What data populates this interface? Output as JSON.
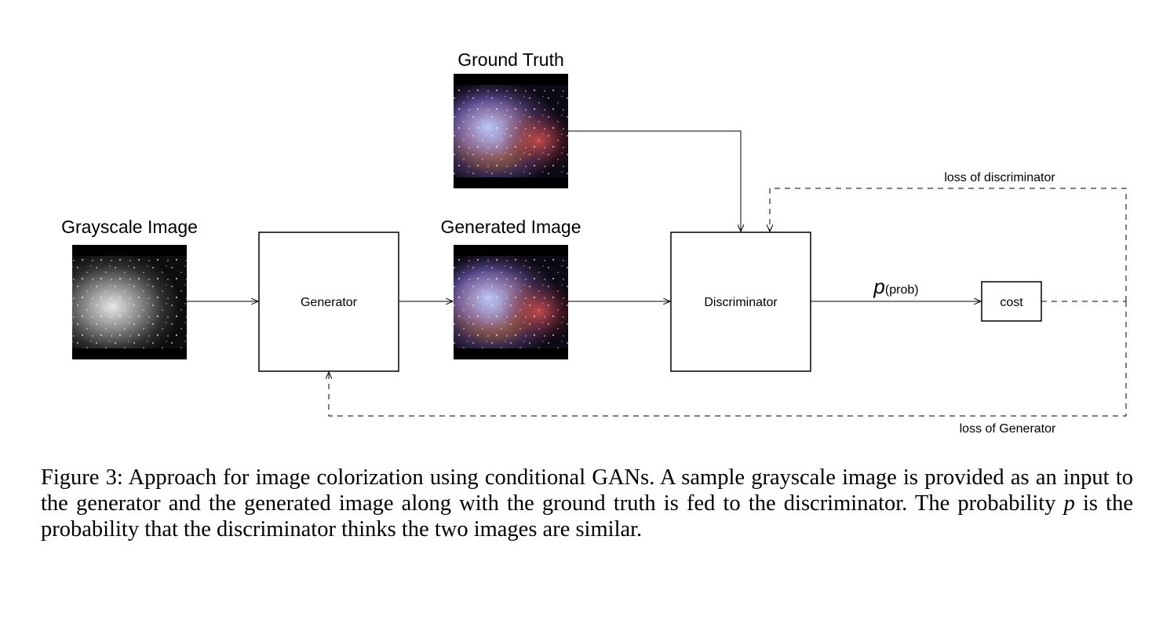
{
  "diagram": {
    "labels": {
      "ground_truth": "Ground Truth",
      "grayscale_image": "Grayscale Image",
      "generated_image": "Generated Image",
      "generator": "Generator",
      "discriminator": "Discriminator",
      "cost": "cost",
      "prob_symbol": "p",
      "prob_text": "(prob)",
      "loss_discriminator": "loss of discriminator",
      "loss_generator": "loss of Generator"
    }
  },
  "caption": {
    "part1": "Figure 3: Approach for image colorization using conditional GANs. A sample grayscale image is provided as an input to the generator and the generated image along with the ground truth is fed to the discriminator. The probability ",
    "var": "p",
    "part2": " is the probability that the discriminator thinks the two images are similar."
  }
}
